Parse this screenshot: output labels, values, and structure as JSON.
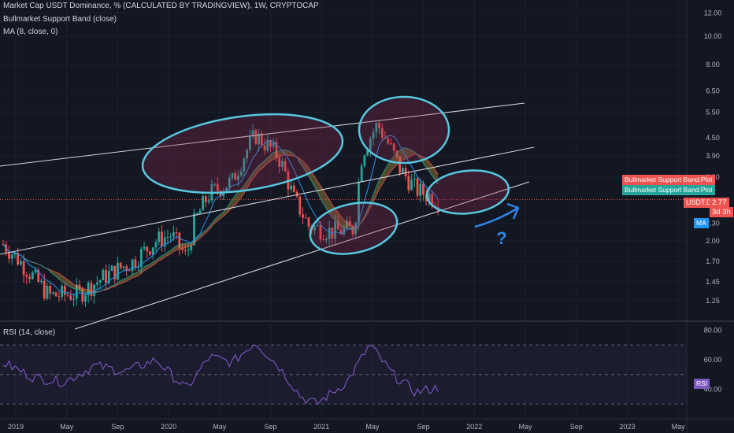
{
  "legend": {
    "line1": "Market Cap USDT Dominance, % (CALCULATED BY TRADINGVIEW), 1W, CRYPTOCAP",
    "line2": "Bullmarket Support Band (close)",
    "line3": "MA (8, close, 0)",
    "rsi": "RSI (14, close)"
  },
  "colors": {
    "bg": "#131722",
    "up": "#26a69a",
    "down": "#ef5350",
    "ellipse": "#56c8e0",
    "arrow": "#2f86e8",
    "rsi": "#7e57c2",
    "band": "#c9a73a",
    "ma": "#2196f3"
  },
  "tags": {
    "band_red": "Bullmarket Support Band:Plot",
    "band_green": "Bullmarket Support Band:Plot",
    "symbol": "USDT.D",
    "price": "2.77",
    "countdown": "3d 3h",
    "ma": "MA",
    "rsi": "RSI"
  },
  "annotation": {
    "question": "?"
  },
  "chart_data": {
    "type": "candlestick",
    "y_axis_scale": "log",
    "y_ticks": [
      "12.00",
      "10.00",
      "8.00",
      "6.50",
      "5.50",
      "4.50",
      "3.90",
      "3.30",
      "2.30",
      "2.00",
      "1.70",
      "1.45",
      "1.25"
    ],
    "x_ticks": [
      "2019",
      "May",
      "Sep",
      "2020",
      "May",
      "Sep",
      "2021",
      "May",
      "Sep",
      "2022",
      "May",
      "Sep",
      "2023",
      "May"
    ],
    "last_price": 2.77,
    "rsi_ticks": [
      "80.00",
      "60.00",
      "40.00"
    ],
    "rsi_bands": [
      70,
      50,
      30
    ],
    "price_path": [
      [
        2019.0,
        1.95
      ],
      [
        2019.2,
        1.5
      ],
      [
        2019.3,
        1.3
      ],
      [
        2019.5,
        1.32
      ],
      [
        2019.7,
        1.55
      ],
      [
        2019.85,
        1.7
      ],
      [
        2020.0,
        2.0
      ],
      [
        2020.1,
        2.1
      ],
      [
        2020.2,
        1.75
      ],
      [
        2020.25,
        2.3
      ],
      [
        2020.35,
        2.9
      ],
      [
        2020.5,
        3.2
      ],
      [
        2020.65,
        4.6
      ],
      [
        2020.8,
        3.9
      ],
      [
        2020.9,
        2.8
      ],
      [
        2021.0,
        2.25
      ],
      [
        2021.15,
        2.15
      ],
      [
        2021.3,
        2.2
      ],
      [
        2021.35,
        4.0
      ],
      [
        2021.45,
        5.0
      ],
      [
        2021.6,
        3.5
      ],
      [
        2021.7,
        3.0
      ],
      [
        2021.85,
        2.75
      ]
    ],
    "rsi_path": [
      [
        2019.0,
        58
      ],
      [
        2019.2,
        48
      ],
      [
        2019.4,
        45
      ],
      [
        2019.6,
        56
      ],
      [
        2019.8,
        52
      ],
      [
        2020.0,
        60
      ],
      [
        2020.2,
        40
      ],
      [
        2020.35,
        62
      ],
      [
        2020.5,
        58
      ],
      [
        2020.65,
        72
      ],
      [
        2020.8,
        56
      ],
      [
        2020.95,
        35
      ],
      [
        2021.05,
        30
      ],
      [
        2021.25,
        45
      ],
      [
        2021.4,
        70
      ],
      [
        2021.55,
        50
      ],
      [
        2021.7,
        38
      ],
      [
        2021.85,
        41
      ]
    ]
  }
}
